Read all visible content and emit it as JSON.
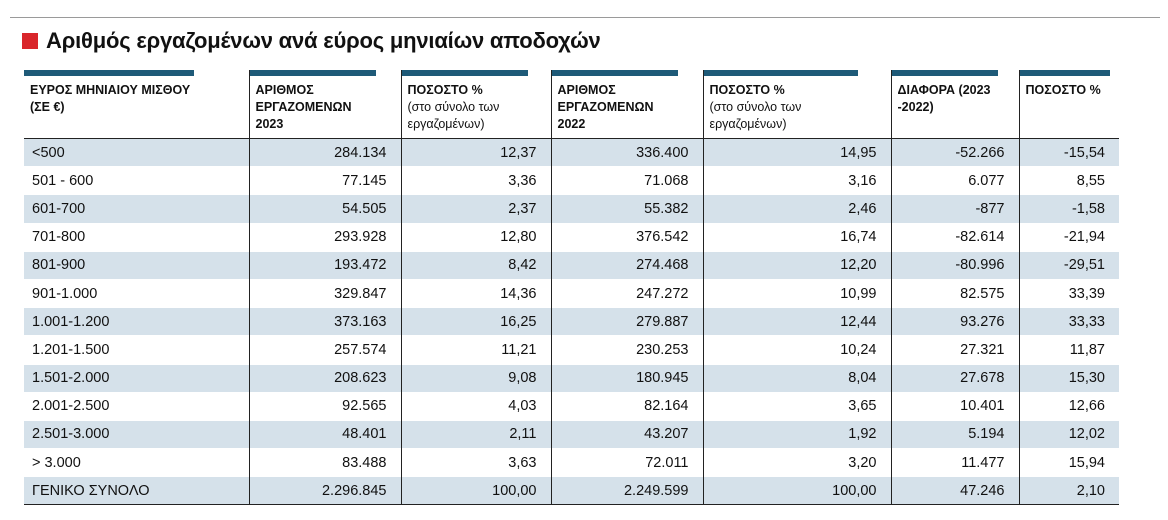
{
  "title": "Αριθμός εργαζομένων ανά εύρος μηνιαίων αποδοχών",
  "colors": {
    "accent_square": "#d9262b",
    "header_bar": "#1e5a78",
    "row_stripe": "#d5e1ea"
  },
  "headers": [
    {
      "main": "ΕΥΡΟΣ ΜΗΝΙΑΙΟΥ ΜΙΣΘΟΥ (ΣΕ €)",
      "sub": ""
    },
    {
      "main": "ΑΡΙΘΜΟΣ ΕΡΓΑΖΟΜΕΝΩΝ 2023",
      "sub": ""
    },
    {
      "main": "ΠΟΣΟΣΤΟ %",
      "sub": "(στο σύνολο των εργαζομένων)"
    },
    {
      "main": "ΑΡΙΘΜΟΣ ΕΡΓΑΖΟΜΕΝΩΝ 2022",
      "sub": ""
    },
    {
      "main": "ΠΟΣΟΣΤΟ %",
      "sub": "(στο σύνολο των εργαζομένων)"
    },
    {
      "main": "ΔΙΑΦΟΡΑ (2023 -2022)",
      "sub": ""
    },
    {
      "main": "ΠΟΣΟΣΤΟ %",
      "sub": ""
    }
  ],
  "rows": [
    [
      "<500",
      "284.134",
      "12,37",
      "336.400",
      "14,95",
      "-52.266",
      "-15,54"
    ],
    [
      "501 - 600",
      "77.145",
      "3,36",
      "71.068",
      "3,16",
      "6.077",
      "8,55"
    ],
    [
      "601-700",
      "54.505",
      "2,37",
      "55.382",
      "2,46",
      "-877",
      "-1,58"
    ],
    [
      "701-800",
      "293.928",
      "12,80",
      "376.542",
      "16,74",
      "-82.614",
      "-21,94"
    ],
    [
      "801-900",
      "193.472",
      "8,42",
      "274.468",
      "12,20",
      "-80.996",
      "-29,51"
    ],
    [
      "901-1.000",
      "329.847",
      "14,36",
      "247.272",
      "10,99",
      "82.575",
      "33,39"
    ],
    [
      "1.001-1.200",
      "373.163",
      "16,25",
      "279.887",
      "12,44",
      "93.276",
      "33,33"
    ],
    [
      "1.201-1.500",
      "257.574",
      "11,21",
      "230.253",
      "10,24",
      "27.321",
      "11,87"
    ],
    [
      "1.501-2.000",
      "208.623",
      "9,08",
      "180.945",
      "8,04",
      "27.678",
      "15,30"
    ],
    [
      "2.001-2.500",
      "92.565",
      "4,03",
      "82.164",
      "3,65",
      "10.401",
      "12,66"
    ],
    [
      "2.501-3.000",
      "48.401",
      "2,11",
      "43.207",
      "1,92",
      "5.194",
      "12,02"
    ],
    [
      "> 3.000",
      "83.488",
      "3,63",
      "72.011",
      "3,20",
      "11.477",
      "15,94"
    ],
    [
      "ΓΕΝΙΚΟ ΣΥΝΟΛΟ",
      "2.296.845",
      "100,00",
      "2.249.599",
      "100,00",
      "47.246",
      "2,10"
    ]
  ]
}
